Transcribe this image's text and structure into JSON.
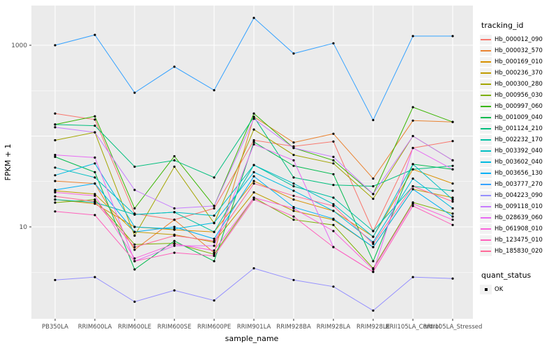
{
  "chart_data": {
    "type": "line",
    "title": "",
    "xlabel": "sample_name",
    "ylabel": "FPKM + 1",
    "y_scale": "log10",
    "ylim": [
      0.97,
      2730
    ],
    "y_tick_labels": [
      "1000",
      "10"
    ],
    "y_tick_values": [
      1000,
      10
    ],
    "grid": "white major and minor gridlines on gray panel",
    "legend_position": "right",
    "legend_title": "tracking_id",
    "point_legend_title": "quant_status",
    "point_legend_label": "OK",
    "point_color": "#000000",
    "panel_bg": "#EBEBEB",
    "grid_color": "#FFFFFF",
    "axis_text_color": "#4D4D4D",
    "categories": [
      "PB350LA",
      "RRIM600LA",
      "RRIM600LE",
      "RRIM600SE",
      "RRIM600PE",
      "RRIM901LA",
      "RRIM928BA",
      "RRIM928LA",
      "RRIM928LE",
      "RRII105LA_Control",
      "RRII105LA_Stressed"
    ],
    "series": [
      {
        "name": "Hb_000012_090",
        "color": "#F8766D",
        "values": [
          177,
          152,
          14,
          12,
          16,
          90,
          77,
          87,
          9,
          74,
          88
        ]
      },
      {
        "name": "Hb_000032_570",
        "color": "#EA8331",
        "values": [
          32,
          30,
          5.6,
          12,
          5.2,
          163,
          85,
          106,
          34,
          148,
          143
        ]
      },
      {
        "name": "Hb_000169_010",
        "color": "#D89000",
        "values": [
          20,
          18,
          10,
          9.3,
          8.8,
          32,
          20,
          15,
          7.8,
          43,
          30
        ]
      },
      {
        "name": "Hb_000236_370",
        "color": "#C09B00",
        "values": [
          25,
          23,
          8.8,
          8.2,
          6.8,
          24,
          15,
          12,
          6,
          26,
          21
        ]
      },
      {
        "name": "Hb_000300_280",
        "color": "#A3A500",
        "values": [
          90,
          110,
          8,
          46,
          11,
          118,
          62,
          50,
          20.4,
          100,
          54
        ]
      },
      {
        "name": "Hb_000956_030",
        "color": "#7CAE00",
        "values": [
          18.5,
          20,
          6.4,
          6.6,
          5,
          21,
          12,
          10.5,
          3.5,
          18.6,
          14
        ]
      },
      {
        "name": "Hb_000997_060",
        "color": "#39B600",
        "values": [
          134,
          165,
          16,
          60,
          17,
          177,
          74,
          54,
          23,
          208,
          143
        ]
      },
      {
        "name": "Hb_001009_040",
        "color": "#00BB4E",
        "values": [
          59,
          40,
          3.4,
          7,
          4.2,
          86,
          47,
          38,
          4.2,
          49,
          43
        ]
      },
      {
        "name": "Hb_001124_210",
        "color": "#00BF7D",
        "values": [
          134,
          130,
          46,
          54,
          35,
          163,
          35,
          29,
          28,
          43,
          47
        ]
      },
      {
        "name": "Hb_002232_170",
        "color": "#00C1A3",
        "values": [
          20,
          18.6,
          13.7,
          14.5,
          8.8,
          48,
          28,
          21,
          9,
          28,
          25
        ]
      },
      {
        "name": "Hb_003392_040",
        "color": "#00BFC4",
        "values": [
          45,
          35,
          13.7,
          14.5,
          13.3,
          48,
          30,
          17.8,
          7.8,
          49,
          20
        ]
      },
      {
        "name": "Hb_003602_040",
        "color": "#00BAE0",
        "values": [
          37,
          50,
          10,
          9.5,
          11.1,
          40,
          25,
          15,
          6.8,
          34,
          16
        ]
      },
      {
        "name": "Hb_003656_130",
        "color": "#00B0F6",
        "values": [
          25.5,
          30,
          8.8,
          10,
          7.4,
          36,
          16.5,
          12.3,
          6,
          26,
          13
        ]
      },
      {
        "name": "Hb_003777_270",
        "color": "#35A2FF",
        "values": [
          1000,
          1300,
          300,
          580,
          320,
          2000,
          810,
          1050,
          150,
          1260,
          1260
        ]
      },
      {
        "name": "Hb_004223_090",
        "color": "#9590FF",
        "values": [
          2.6,
          2.8,
          1.5,
          2.0,
          1.55,
          3.5,
          2.6,
          2.2,
          1.2,
          2.8,
          2.7
        ]
      },
      {
        "name": "Hb_009118_010",
        "color": "#C77CFF",
        "values": [
          125,
          110,
          25.5,
          16,
          17,
          155,
          74,
          59,
          23,
          100,
          54
        ]
      },
      {
        "name": "Hb_028639_060",
        "color": "#E76BF3",
        "values": [
          62,
          58,
          4.2,
          6.2,
          6.2,
          81,
          54,
          6,
          3.2,
          74,
          43
        ]
      },
      {
        "name": "Hb_061908_010",
        "color": "#FA62DB",
        "values": [
          24,
          22,
          4.5,
          6.5,
          5.5,
          21,
          16,
          9,
          3.4,
          18,
          12
        ]
      },
      {
        "name": "Hb_123475_010",
        "color": "#FF62BC",
        "values": [
          14.8,
          13.5,
          4.2,
          5.2,
          4.8,
          20,
          13,
          6,
          3.2,
          17,
          10.5
        ]
      },
      {
        "name": "Hb_185830_020",
        "color": "#FF6A98",
        "values": [
          21.7,
          19,
          6,
          8,
          7,
          30,
          22,
          17,
          6.5,
          28,
          19
        ]
      }
    ]
  }
}
